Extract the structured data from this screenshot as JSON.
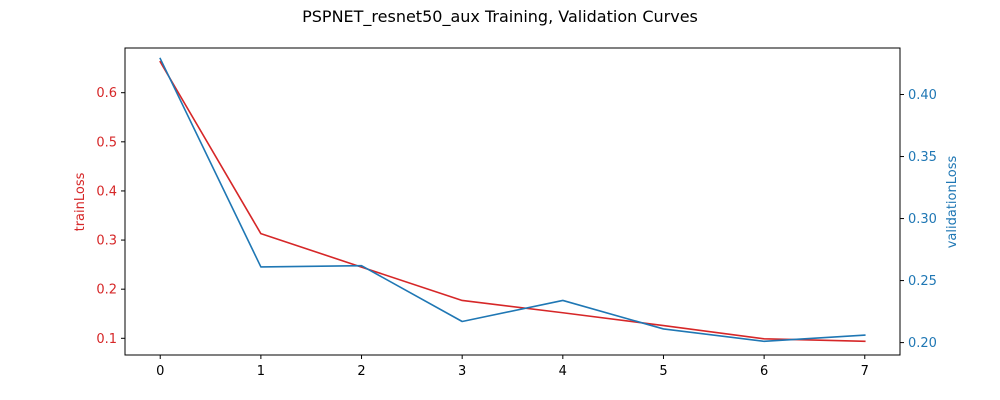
{
  "chart_data": {
    "type": "line",
    "title": "PSPNET_resnet50_aux Training, Validation Curves",
    "xlabel": "",
    "x": [
      0,
      1,
      2,
      3,
      4,
      5,
      6,
      7
    ],
    "xlim": [
      -0.35,
      7.35
    ],
    "xticks": [
      "0",
      "1",
      "2",
      "3",
      "4",
      "5",
      "6",
      "7"
    ],
    "grid": false,
    "series": [
      {
        "name": "trainLoss",
        "axis": "left",
        "color": "#d62728",
        "values": [
          0.663,
          0.313,
          0.245,
          0.177,
          0.152,
          0.126,
          0.099,
          0.094
        ]
      },
      {
        "name": "validationLoss",
        "axis": "right",
        "color": "#1f77b4",
        "values": [
          0.429,
          0.261,
          0.262,
          0.217,
          0.234,
          0.211,
          0.201,
          0.206
        ]
      }
    ],
    "left_axis": {
      "label": "trainLoss",
      "color": "#d62728",
      "ylim": [
        0.066,
        0.691
      ],
      "ticks": [
        "0.1",
        "0.2",
        "0.3",
        "0.4",
        "0.5",
        "0.6"
      ]
    },
    "right_axis": {
      "label": "validationLoss",
      "color": "#1f77b4",
      "ylim": [
        0.19,
        0.4375
      ],
      "ticks": [
        "0.20",
        "0.25",
        "0.30",
        "0.35",
        "0.40"
      ]
    }
  }
}
